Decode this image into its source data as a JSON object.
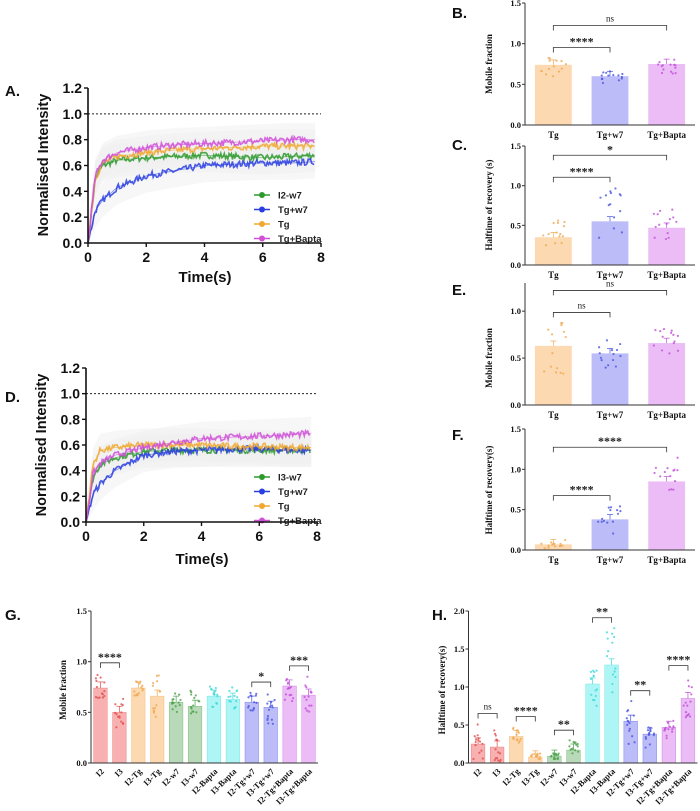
{
  "chart_data": [
    {
      "panel": "A.",
      "type": "line",
      "xlabel": "Time(s)",
      "ylabel": "Normalised Intensity",
      "xlim": [
        0,
        8
      ],
      "ylim": [
        0,
        1.2
      ],
      "xticks": [
        "0",
        "2",
        "4",
        "6",
        "8"
      ],
      "yticks": [
        "0.0",
        "0.2",
        "0.4",
        "0.6",
        "0.8",
        "1.0",
        "1.2"
      ],
      "reference_line": 1.0,
      "x": [
        0,
        0.25,
        0.5,
        1,
        2,
        3,
        4,
        5,
        6,
        7,
        7.8
      ],
      "series": [
        {
          "name": "I2-w7",
          "color": "#2e9a2e",
          "values": [
            0,
            0.5,
            0.6,
            0.64,
            0.66,
            0.67,
            0.68,
            0.67,
            0.66,
            0.67,
            0.68
          ]
        },
        {
          "name": "Tg+w7",
          "color": "#2a3ee0",
          "values": [
            0,
            0.25,
            0.33,
            0.43,
            0.52,
            0.56,
            0.6,
            0.61,
            0.62,
            0.62,
            0.63
          ]
        },
        {
          "name": "Tg",
          "color": "#f0a830",
          "values": [
            0,
            0.5,
            0.62,
            0.67,
            0.7,
            0.72,
            0.73,
            0.74,
            0.75,
            0.75,
            0.75
          ]
        },
        {
          "name": "Tg+Bapta",
          "color": "#d050d8",
          "values": [
            0,
            0.52,
            0.64,
            0.7,
            0.74,
            0.76,
            0.77,
            0.78,
            0.79,
            0.8,
            0.8
          ]
        }
      ]
    },
    {
      "panel": "D.",
      "type": "line",
      "xlabel": "Time(s)",
      "ylabel": "Normalised Intensity",
      "xlim": [
        0,
        8
      ],
      "ylim": [
        0,
        1.2
      ],
      "xticks": [
        "0",
        "2",
        "4",
        "6",
        "8"
      ],
      "yticks": [
        "0.0",
        "0.2",
        "0.4",
        "0.6",
        "0.8",
        "1.0",
        "1.2"
      ],
      "reference_line": 1.0,
      "x": [
        0,
        0.25,
        0.5,
        1,
        2,
        3,
        4,
        5,
        6,
        7,
        7.8
      ],
      "series": [
        {
          "name": "I3-w7",
          "color": "#2e9a2e",
          "values": [
            0,
            0.35,
            0.45,
            0.5,
            0.55,
            0.56,
            0.56,
            0.56,
            0.56,
            0.56,
            0.56
          ]
        },
        {
          "name": "Tg+w7",
          "color": "#2a3ee0",
          "values": [
            0,
            0.22,
            0.3,
            0.4,
            0.52,
            0.55,
            0.56,
            0.57,
            0.57,
            0.56,
            0.56
          ]
        },
        {
          "name": "Tg",
          "color": "#f0a830",
          "values": [
            0,
            0.45,
            0.56,
            0.58,
            0.6,
            0.6,
            0.6,
            0.59,
            0.59,
            0.58,
            0.58
          ]
        },
        {
          "name": "Tg+Bapta",
          "color": "#d050d8",
          "values": [
            0,
            0.38,
            0.46,
            0.52,
            0.58,
            0.62,
            0.65,
            0.66,
            0.67,
            0.68,
            0.69
          ]
        }
      ]
    },
    {
      "panel": "B.",
      "type": "bar",
      "ylabel": "Mobile fraction",
      "ylim": [
        0,
        1.5
      ],
      "yticks": [
        "0.0",
        "0.5",
        "1.0",
        "1.5"
      ],
      "categories": [
        "Tg",
        "Tg+w7",
        "Tg+Bapta"
      ],
      "values": [
        0.74,
        0.6,
        0.75
      ],
      "points_range": [
        [
          0.6,
          0.83
        ],
        [
          0.5,
          0.68
        ],
        [
          0.6,
          0.82
        ]
      ],
      "colors": [
        "#fcd9b0",
        "#bcbcf8",
        "#ebbcf5"
      ],
      "dot_colors": [
        "#f0a850",
        "#4a55e0",
        "#c050d8"
      ],
      "significance": [
        {
          "from": 0,
          "to": 1,
          "label": "****"
        },
        {
          "from": 0,
          "to": 2,
          "label": "ns"
        }
      ]
    },
    {
      "panel": "C.",
      "type": "bar",
      "ylabel": "Halftime of recovery (s)",
      "ylim": [
        0,
        1.5
      ],
      "yticks": [
        "0.0",
        "0.5",
        "1.0",
        "1.5"
      ],
      "categories": [
        "Tg",
        "Tg+w7",
        "Tg+Bapta"
      ],
      "values": [
        0.35,
        0.55,
        0.47
      ],
      "points_range": [
        [
          0.22,
          0.6
        ],
        [
          0.25,
          0.98
        ],
        [
          0.3,
          0.7
        ]
      ],
      "colors": [
        "#fcd9b0",
        "#bcbcf8",
        "#ebbcf5"
      ],
      "dot_colors": [
        "#f0a850",
        "#4a55e0",
        "#c050d8"
      ],
      "significance": [
        {
          "from": 0,
          "to": 1,
          "label": "****"
        },
        {
          "from": 0,
          "to": 2,
          "label": "*"
        }
      ]
    },
    {
      "panel": "E.",
      "type": "bar",
      "ylabel": "Mobile fraction",
      "ylim": [
        0,
        1.3
      ],
      "yticks": [
        "0.0",
        "0.5",
        "1.0"
      ],
      "categories": [
        "Tg",
        "Tg+w7",
        "Tg+Bapta"
      ],
      "values": [
        0.63,
        0.55,
        0.66
      ],
      "points_range": [
        [
          0.33,
          0.88
        ],
        [
          0.37,
          0.7
        ],
        [
          0.55,
          0.84
        ]
      ],
      "colors": [
        "#fcd9b0",
        "#bcbcf8",
        "#ebbcf5"
      ],
      "dot_colors": [
        "#f0a850",
        "#4a55e0",
        "#c050d8"
      ],
      "significance": [
        {
          "from": 0,
          "to": 1,
          "label": "ns"
        },
        {
          "from": 0,
          "to": 2,
          "label": "ns"
        }
      ]
    },
    {
      "panel": "F.",
      "type": "bar",
      "ylabel": "Halftime of recovery(s)",
      "ylim": [
        0,
        1.5
      ],
      "yticks": [
        "0.0",
        "0.5",
        "1.0",
        "1.5"
      ],
      "categories": [
        "Tg",
        "Tg+w7",
        "Tg+Bapta"
      ],
      "values": [
        0.07,
        0.38,
        0.85
      ],
      "points_range": [
        [
          0.02,
          0.14
        ],
        [
          0.2,
          0.55
        ],
        [
          0.58,
          1.15
        ]
      ],
      "colors": [
        "#fcd9b0",
        "#bcbcf8",
        "#ebbcf5"
      ],
      "dot_colors": [
        "#f0a850",
        "#4a55e0",
        "#c050d8"
      ],
      "significance": [
        {
          "from": 0,
          "to": 1,
          "label": "****"
        },
        {
          "from": 0,
          "to": 2,
          "label": "****"
        }
      ]
    },
    {
      "panel": "G.",
      "type": "bar",
      "ylabel": "Mobile fraction",
      "ylim": [
        0,
        1.5
      ],
      "yticks": [
        "0.0",
        "0.5",
        "1.0",
        "1.5"
      ],
      "categories": [
        "I2",
        "I3",
        "I2-Tg",
        "I3-Tg",
        "I2-w7",
        "I3-w7",
        "I2-Bapta",
        "I3-Bapta",
        "I2-Tg+w7",
        "I3-Tg+w7",
        "I2-Tg+Bapta",
        "I3-Tg+Bapta"
      ],
      "values": [
        0.74,
        0.5,
        0.74,
        0.66,
        0.6,
        0.56,
        0.66,
        0.63,
        0.6,
        0.55,
        0.76,
        0.67
      ],
      "points_range": [
        [
          0.6,
          0.89
        ],
        [
          0.35,
          0.65
        ],
        [
          0.6,
          0.83
        ],
        [
          0.45,
          0.87
        ],
        [
          0.5,
          0.7
        ],
        [
          0.48,
          0.72
        ],
        [
          0.55,
          0.76
        ],
        [
          0.5,
          0.76
        ],
        [
          0.5,
          0.7
        ],
        [
          0.38,
          0.68
        ],
        [
          0.6,
          0.85
        ],
        [
          0.5,
          0.86
        ]
      ],
      "colors": [
        "#f8b0b0",
        "#f8b0b0",
        "#fcd9b0",
        "#fcd9b0",
        "#b8dab8",
        "#b8dab8",
        "#aef5f5",
        "#aef5f5",
        "#bcbcf8",
        "#bcbcf8",
        "#ebbcf5",
        "#ebbcf5"
      ],
      "dot_colors": [
        "#e05050",
        "#e05050",
        "#f0a850",
        "#f0a850",
        "#48a048",
        "#48a048",
        "#40d8d8",
        "#40d8d8",
        "#4a55e0",
        "#4a55e0",
        "#c050d8",
        "#c050d8"
      ],
      "significance": [
        {
          "from": 0,
          "to": 1,
          "label": "****"
        },
        {
          "from": 8,
          "to": 9,
          "label": "*"
        },
        {
          "from": 10,
          "to": 11,
          "label": "***"
        }
      ]
    },
    {
      "panel": "H.",
      "type": "bar",
      "ylabel": "Halftime of recovery(s)",
      "ylim": [
        0,
        2.0
      ],
      "yticks": [
        "0.0",
        "0.5",
        "1.0",
        "1.5",
        "2.0"
      ],
      "categories": [
        "I2",
        "I3",
        "I2-Tg",
        "I3-Tg",
        "I2-w7",
        "I3-w7",
        "I2-Bapta",
        "I3-Bapta",
        "I2-Tg+w7",
        "I3-Tg+w7",
        "I2-Tg+Bapta",
        "I3-Tg+Bapta"
      ],
      "values": [
        0.25,
        0.21,
        0.35,
        0.08,
        0.09,
        0.17,
        1.04,
        1.29,
        0.55,
        0.38,
        0.47,
        0.85
      ],
      "points_range": [
        [
          0.02,
          0.52
        ],
        [
          0.02,
          0.43
        ],
        [
          0.25,
          0.48
        ],
        [
          0.04,
          0.13
        ],
        [
          0.05,
          0.13
        ],
        [
          0.08,
          0.3
        ],
        [
          0.75,
          1.27
        ],
        [
          0.9,
          1.78
        ],
        [
          0.25,
          0.82
        ],
        [
          0.2,
          0.55
        ],
        [
          0.3,
          0.7
        ],
        [
          0.58,
          1.15
        ]
      ],
      "colors": [
        "#f8b0b0",
        "#f8b0b0",
        "#fcd9b0",
        "#fcd9b0",
        "#b8dab8",
        "#b8dab8",
        "#aef5f5",
        "#aef5f5",
        "#bcbcf8",
        "#bcbcf8",
        "#ebbcf5",
        "#ebbcf5"
      ],
      "dot_colors": [
        "#e05050",
        "#e05050",
        "#f0a850",
        "#f0a850",
        "#48a048",
        "#48a048",
        "#40d8d8",
        "#40d8d8",
        "#4a55e0",
        "#4a55e0",
        "#c050d8",
        "#c050d8"
      ],
      "significance": [
        {
          "from": 0,
          "to": 1,
          "label": "ns"
        },
        {
          "from": 2,
          "to": 3,
          "label": "****"
        },
        {
          "from": 4,
          "to": 5,
          "label": "**"
        },
        {
          "from": 6,
          "to": 7,
          "label": "**"
        },
        {
          "from": 8,
          "to": 9,
          "label": "**"
        },
        {
          "from": 10,
          "to": 11,
          "label": "****"
        }
      ]
    }
  ]
}
